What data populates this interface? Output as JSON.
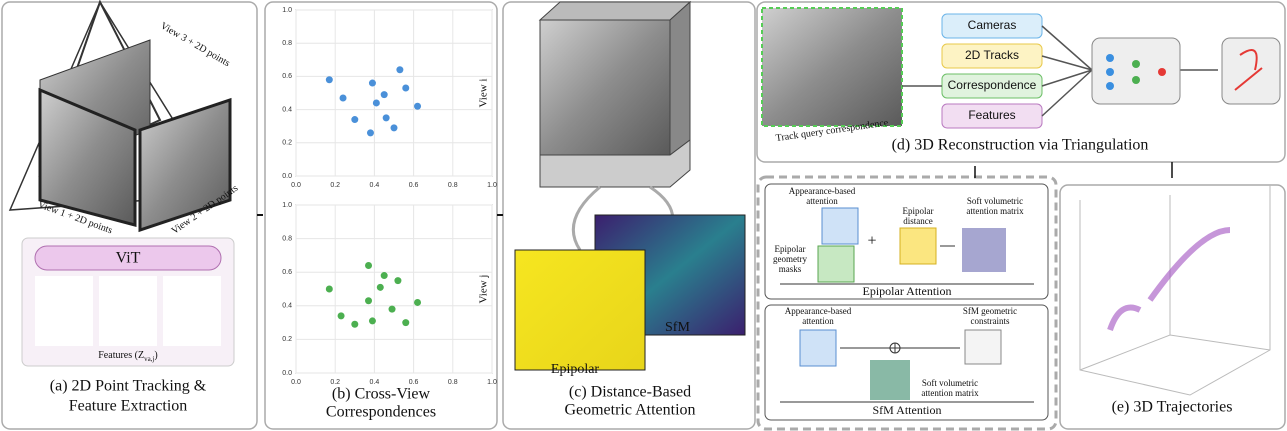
{
  "chart_data": [
    {
      "type": "scatter",
      "y_label": "View i",
      "color": "#4a90d9",
      "x": [
        0.17,
        0.24,
        0.39,
        0.53,
        0.56,
        0.45,
        0.62,
        0.3,
        0.46,
        0.41,
        0.5,
        0.38
      ],
      "values": [
        0.58,
        0.47,
        0.56,
        0.64,
        0.53,
        0.49,
        0.42,
        0.34,
        0.35,
        0.44,
        0.29,
        0.26
      ],
      "xlim": [
        0,
        1
      ],
      "ylim": [
        0,
        1
      ],
      "xticks": [
        {
          "value": 0,
          "label": "0.0"
        },
        {
          "value": 0.2,
          "label": "0.2"
        },
        {
          "value": 0.4,
          "label": "0.4"
        },
        {
          "value": 0.6,
          "label": "0.6"
        },
        {
          "value": 0.8,
          "label": "0.8"
        },
        {
          "value": 1,
          "label": "1.0"
        }
      ],
      "yticks": [
        {
          "value": 0,
          "label": "0.0"
        },
        {
          "value": 0.2,
          "label": "0.2"
        },
        {
          "value": 0.4,
          "label": "0.4"
        },
        {
          "value": 0.6,
          "label": "0.6"
        },
        {
          "value": 0.8,
          "label": "0.8"
        },
        {
          "value": 1,
          "label": "1.0"
        }
      ],
      "grid": true
    },
    {
      "type": "scatter",
      "y_label": "View j",
      "color": "#4caf50",
      "x": [
        0.17,
        0.37,
        0.45,
        0.52,
        0.43,
        0.37,
        0.23,
        0.3,
        0.39,
        0.49,
        0.56,
        0.62
      ],
      "values": [
        0.5,
        0.64,
        0.58,
        0.55,
        0.51,
        0.43,
        0.34,
        0.29,
        0.31,
        0.38,
        0.3,
        0.42
      ],
      "xlim": [
        0,
        1
      ],
      "ylim": [
        0,
        1
      ],
      "xticks": [
        {
          "value": 0,
          "label": "0.0"
        },
        {
          "value": 0.2,
          "label": "0.2"
        },
        {
          "value": 0.4,
          "label": "0.4"
        },
        {
          "value": 0.6,
          "label": "0.6"
        },
        {
          "value": 0.8,
          "label": "0.8"
        },
        {
          "value": 1,
          "label": "1.0"
        }
      ],
      "yticks": [
        {
          "value": 0,
          "label": "0.0"
        },
        {
          "value": 0.2,
          "label": "0.2"
        },
        {
          "value": 0.4,
          "label": "0.4"
        },
        {
          "value": 0.6,
          "label": "0.6"
        },
        {
          "value": 0.8,
          "label": "0.8"
        },
        {
          "value": 1,
          "label": "1.0"
        }
      ],
      "grid": true
    }
  ],
  "panel_a": {
    "view3": "View 3 + 2D points",
    "view1": "View 1 + 2D points",
    "view2": "View 2 + 2D points",
    "vit": "ViT",
    "features": "Features (Z",
    "features_sub": "va,j",
    "features_end": ")",
    "caption": [
      "(a) 2D Point Tracking &",
      "Feature Extraction"
    ]
  },
  "panel_b": {
    "caption": [
      "(b) Cross-View",
      "Correspondences"
    ]
  },
  "panel_c": {
    "epipolar": "Epipolar",
    "sfm": "SfM",
    "caption": [
      "(c) Distance-Based",
      "Geometric Attention"
    ]
  },
  "panel_d": {
    "inputs": [
      "Cameras",
      "2D Tracks",
      "Correspondence",
      "Features"
    ],
    "track_query": "Track query correspondence",
    "caption": "(d) 3D Reconstruction via Triangulation"
  },
  "inset": {
    "epi_appearance": [
      "Appearance-based",
      "attention"
    ],
    "epi_masks": [
      "Epipolar",
      "geometry",
      "masks"
    ],
    "plus": "+",
    "epi_distance": [
      "Epipolar",
      "distance"
    ],
    "epi_soft": [
      "Soft volumetric",
      "attention matrix"
    ],
    "epi_title": "Epipolar Attention",
    "sfm_appearance": [
      "Appearance-based",
      "attention"
    ],
    "sfm_constraints": [
      "SfM geometric",
      "constraints"
    ],
    "sfm_soft": [
      "Soft volumetric",
      "attention matrix"
    ],
    "sfm_title": "SfM Attention"
  },
  "panel_e": {
    "caption": "(e) 3D Trajectories"
  }
}
